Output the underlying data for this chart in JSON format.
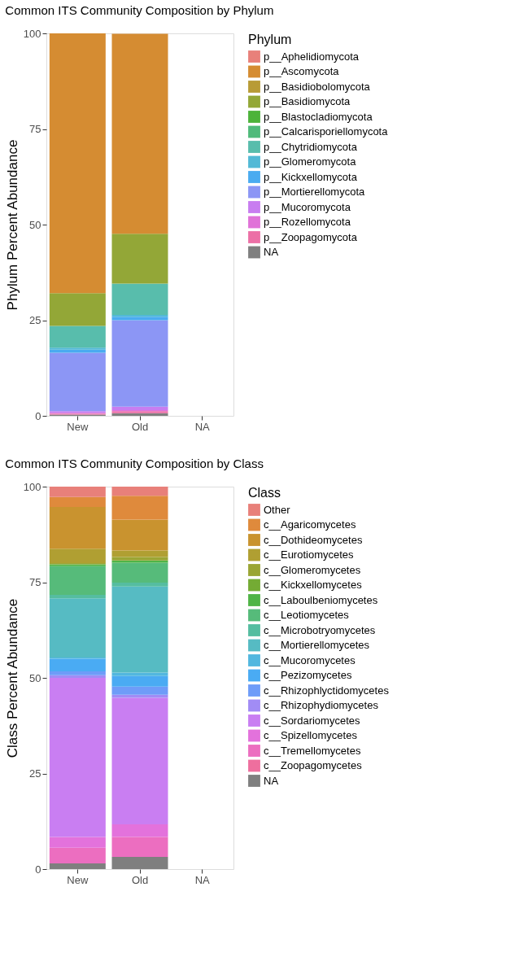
{
  "chart_data": [
    {
      "type": "bar",
      "stacked": true,
      "title": "Common ITS Community Composition by Phylum",
      "ylabel": "Phylum Percent Abundance",
      "legend_title": "Phylum",
      "legend": "right",
      "grid": false,
      "categories": [
        "New",
        "Old",
        "NA"
      ],
      "ylim": [
        0,
        100
      ],
      "yticks": [
        0,
        25,
        50,
        75,
        100
      ],
      "series": [
        {
          "name": "NA",
          "color": "#7f7f7f",
          "values": [
            0.3,
            0.7,
            null
          ]
        },
        {
          "name": "p__Zoopagomycota",
          "color": "#ec70a6",
          "values": [
            0.3,
            0.5,
            null
          ]
        },
        {
          "name": "p__Rozellomycota",
          "color": "#e072d8",
          "values": [
            0.2,
            0.3,
            null
          ]
        },
        {
          "name": "p__Mucoromycota",
          "color": "#c87df0",
          "values": [
            0.4,
            0.9,
            null
          ]
        },
        {
          "name": "p__Mortierellomycota",
          "color": "#8c96f5",
          "values": [
            15.3,
            22.6,
            null
          ]
        },
        {
          "name": "p__Kickxellomycota",
          "color": "#4aabf0",
          "values": [
            0.8,
            0.9,
            null
          ]
        },
        {
          "name": "p__Glomeromycota",
          "color": "#52b9d6",
          "values": [
            0.5,
            0.5,
            null
          ]
        },
        {
          "name": "p__Chytridiomycota",
          "color": "#58bdac",
          "values": [
            5.7,
            8.2,
            null
          ]
        },
        {
          "name": "p__Calcarisporiellomycota",
          "color": "#4fba7a",
          "values": [
            0,
            0,
            null
          ]
        },
        {
          "name": "p__Blastocladiomycota",
          "color": "#4cb33a",
          "values": [
            0,
            0,
            null
          ]
        },
        {
          "name": "p__Basidiomycota",
          "color": "#93a737",
          "values": [
            8.6,
            13.0,
            null
          ]
        },
        {
          "name": "p__Basidiobolomycota",
          "color": "#b89b36",
          "values": [
            0,
            0,
            null
          ]
        },
        {
          "name": "p__Ascomycota",
          "color": "#d58c32",
          "values": [
            67.9,
            52.3,
            null
          ]
        },
        {
          "name": "p__Aphelidiomycota",
          "color": "#e8807a",
          "values": [
            0,
            null,
            null
          ]
        }
      ]
    },
    {
      "type": "bar",
      "stacked": true,
      "title": "Common ITS Community Composition by Class",
      "ylabel": "Class Percent Abundance",
      "legend_title": "Class",
      "legend": "right",
      "grid": false,
      "categories": [
        "New",
        "Old",
        "NA"
      ],
      "ylim": [
        0,
        100
      ],
      "yticks": [
        0,
        25,
        50,
        75,
        100
      ],
      "series": [
        {
          "name": "NA",
          "color": "#7f7f7f",
          "values": [
            1.5,
            3.2,
            null
          ]
        },
        {
          "name": "c__Zoopagomycetes",
          "color": "#ee6f9e",
          "values": [
            0,
            0,
            null
          ]
        },
        {
          "name": "c__Tremellomycetes",
          "color": "#ec6ec0",
          "values": [
            4.1,
            5.2,
            null
          ]
        },
        {
          "name": "c__Spizellomycetes",
          "color": "#e372dc",
          "values": [
            2.8,
            3.3,
            null
          ]
        },
        {
          "name": "c__Sordariomycetes",
          "color": "#c97ef2",
          "values": [
            41.6,
            33.1,
            null
          ]
        },
        {
          "name": "c__Rhizophydiomycetes",
          "color": "#a18cf5",
          "values": [
            0.7,
            0.8,
            null
          ]
        },
        {
          "name": "c__Rhizophlyctidomycetes",
          "color": "#6e9cf8",
          "values": [
            1.0,
            2.1,
            null
          ]
        },
        {
          "name": "c__Pezizomycetes",
          "color": "#4aabf3",
          "values": [
            3.3,
            2.8,
            null
          ]
        },
        {
          "name": "c__Mucoromycetes",
          "color": "#52b7df",
          "values": [
            0.3,
            0.9,
            null
          ]
        },
        {
          "name": "c__Mortierellomycetes",
          "color": "#56bbc3",
          "values": [
            15.5,
            22.5,
            null
          ]
        },
        {
          "name": "c__Microbotryomycetes",
          "color": "#55bda0",
          "values": [
            0.9,
            1.0,
            null
          ]
        },
        {
          "name": "c__Leotiomycetes",
          "color": "#56bb7a",
          "values": [
            7.5,
            5.2,
            null
          ]
        },
        {
          "name": "c__Laboulbeniomycetes",
          "color": "#4fb446",
          "values": [
            0.5,
            0.6,
            null
          ]
        },
        {
          "name": "c__Kickxellomycetes",
          "color": "#74ab34",
          "values": [
            0,
            0,
            null
          ]
        },
        {
          "name": "c__Glomeromycetes",
          "color": "#9aa534",
          "values": [
            0.3,
            0.9,
            null
          ]
        },
        {
          "name": "c__Eurotiomycetes",
          "color": "#b09f32",
          "values": [
            3.8,
            1.7,
            null
          ]
        },
        {
          "name": "c__Dothideomycetes",
          "color": "#c9932f",
          "values": [
            10.9,
            8.1,
            null
          ]
        },
        {
          "name": "c__Agaricomycetes",
          "color": "#df8a3c",
          "values": [
            2.6,
            6.2,
            null
          ]
        },
        {
          "name": "Other",
          "color": "#e8807a",
          "values": [
            2.7,
            2.4,
            null
          ]
        }
      ]
    }
  ]
}
